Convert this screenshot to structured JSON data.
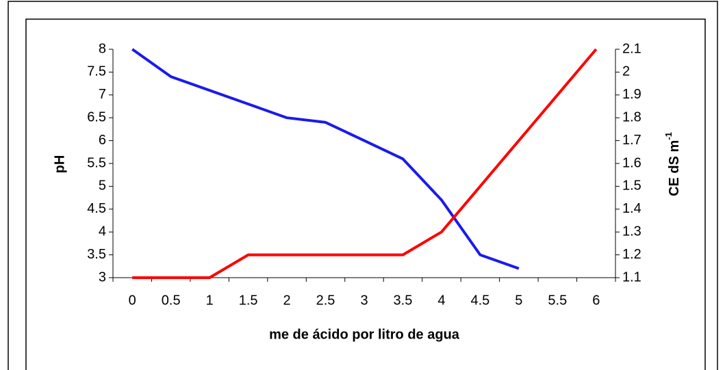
{
  "chart_data": {
    "type": "line",
    "xlabel": "me de ácido por litro de agua",
    "ylabel": "pH",
    "y2label": "CE dS m",
    "y2label_superscript": "-1",
    "categories": [
      "0",
      "0.5",
      "1",
      "1.5",
      "2",
      "2.5",
      "3",
      "3.5",
      "4",
      "4.5",
      "5",
      "5.5",
      "6"
    ],
    "series": [
      {
        "color": "#1a1aee",
        "values": [
          8,
          7.4,
          7.1,
          6.8,
          6.5,
          6.4,
          6.0,
          5.6,
          4.7,
          3.5,
          3.2,
          null,
          null
        ]
      },
      {
        "color": "#ff0000",
        "axis": "y2",
        "values": [
          1.1,
          1.1,
          1.1,
          1.2,
          1.2,
          1.2,
          1.2,
          1.2,
          1.3,
          1.5,
          1.7,
          1.9,
          2.1
        ]
      }
    ],
    "ylim": [
      3,
      8
    ],
    "yticks": [
      3,
      3.5,
      4,
      4.5,
      5,
      5.5,
      6,
      6.5,
      7,
      7.5,
      8
    ],
    "y2lim": [
      1.1,
      2.1
    ],
    "y2ticks": [
      1.1,
      1.2,
      1.3,
      1.4,
      1.5,
      1.6,
      1.7,
      1.8,
      1.9,
      2,
      2.1
    ]
  }
}
